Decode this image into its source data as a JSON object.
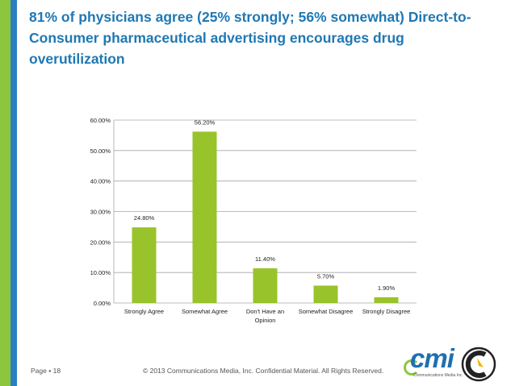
{
  "slide": {
    "title": "81% of physicians agree (25% strongly; 56% somewhat) Direct-to-Consumer pharmaceutical advertising encourages drug overutilization",
    "page_label": "Page ▪ 18",
    "copyright": "© 2013 Communications Media, Inc. Confidential Material. All Rights Reserved.",
    "logo_text": "cmi",
    "logo_subtext": "Communications Media Inc."
  },
  "colors": {
    "accent_green": "#8cc63f",
    "accent_blue": "#2b7fc0",
    "title_blue": "#1f78b4",
    "bar": "#99c32a"
  },
  "chart_data": {
    "type": "bar",
    "title": "",
    "categories": [
      "Strongly Agree",
      "Somewhat Agree",
      "Don't Have an Opinion",
      "Somewhat Disagree",
      "Strongly Disagree"
    ],
    "category_lines": [
      [
        "Strongly Agree"
      ],
      [
        "Somewhat Agree"
      ],
      [
        "Don't Have an",
        "Opinion"
      ],
      [
        "Somewhat Disagree"
      ],
      [
        "Strongly Disagree"
      ]
    ],
    "values": [
      24.8,
      56.2,
      11.4,
      5.7,
      1.9
    ],
    "data_labels": [
      "24.80%",
      "56.20%",
      "11.40%",
      "5.70%",
      "1.90%"
    ],
    "ylim": [
      0,
      60
    ],
    "yticks": [
      0,
      10,
      20,
      30,
      40,
      50,
      60
    ],
    "ytick_labels": [
      "0.00%",
      "10.00%",
      "20.00%",
      "30.00%",
      "40.00%",
      "50.00%",
      "60.00%"
    ],
    "grid": true,
    "xlabel": "",
    "ylabel": ""
  }
}
